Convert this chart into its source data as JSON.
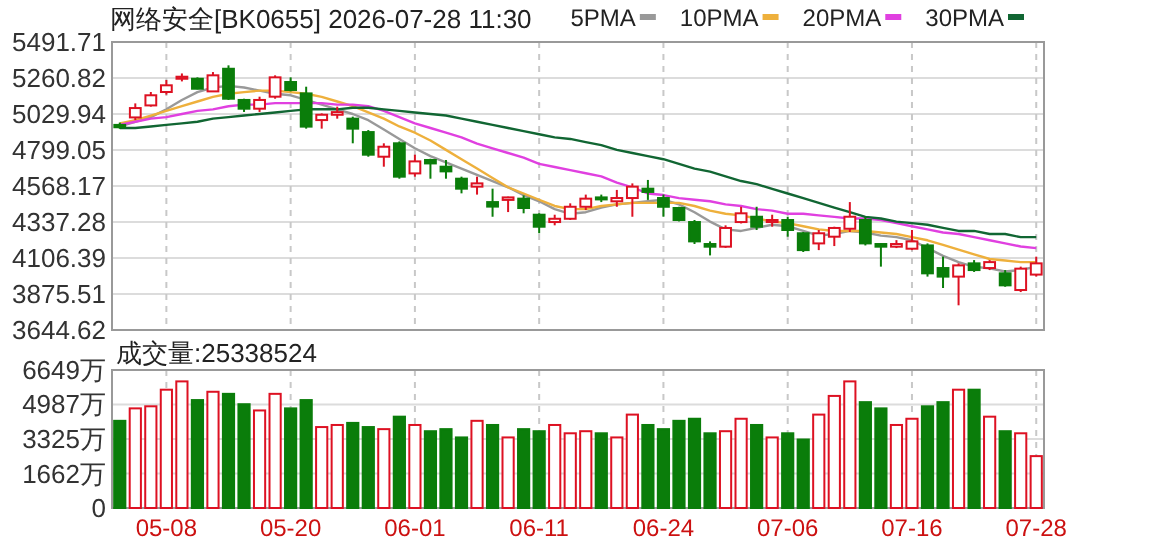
{
  "chart_data": [
    {
      "type": "candlestick",
      "title": "网络安全[BK0655] 2026-07-28 11:30",
      "categories": [
        null,
        null,
        null,
        null,
        null,
        null,
        null,
        null,
        null,
        null,
        null,
        null,
        null,
        null,
        null,
        null,
        null,
        null,
        null,
        null,
        null,
        null,
        null,
        null,
        null,
        null,
        null,
        null,
        null,
        null,
        null,
        null,
        null,
        null,
        null,
        null,
        null,
        null,
        null,
        null,
        null,
        null,
        null,
        null,
        null,
        null,
        null,
        null,
        null,
        null,
        null,
        null,
        null,
        null,
        null,
        null,
        null,
        null,
        null,
        null
      ],
      "ohlc": [
        [
          4960,
          4975,
          4935,
          4945
        ],
        [
          5008,
          5098,
          4991,
          5068
        ],
        [
          5085,
          5171,
          5077,
          5150
        ],
        [
          5171,
          5248,
          5154,
          5214
        ],
        [
          5256,
          5290,
          5239,
          5269
        ],
        [
          5256,
          5265,
          5188,
          5192
        ],
        [
          5175,
          5299,
          5171,
          5278
        ],
        [
          5320,
          5342,
          5120,
          5128
        ],
        [
          5120,
          5128,
          5043,
          5064
        ],
        [
          5064,
          5141,
          5043,
          5120
        ],
        [
          5141,
          5278,
          5128,
          5265
        ],
        [
          5235,
          5265,
          5175,
          5184
        ],
        [
          5162,
          5205,
          4936,
          4949
        ],
        [
          4991,
          5034,
          4936,
          5025
        ],
        [
          5025,
          5077,
          5000,
          5042
        ],
        [
          5000,
          5013,
          4842,
          4936
        ],
        [
          4914,
          4927,
          4756,
          4769
        ],
        [
          4756,
          4842,
          4692,
          4820
        ],
        [
          4842,
          4854,
          4615,
          4628
        ],
        [
          4649,
          4769,
          4628,
          4726
        ],
        [
          4735,
          4743,
          4615,
          4713
        ],
        [
          4692,
          4735,
          4615,
          4662
        ],
        [
          4615,
          4628,
          4521,
          4551
        ],
        [
          4564,
          4628,
          4513,
          4585
        ],
        [
          4465,
          4551,
          4371,
          4436
        ],
        [
          4479,
          4500,
          4401,
          4495
        ],
        [
          4487,
          4508,
          4393,
          4427
        ],
        [
          4384,
          4393,
          4265,
          4307
        ],
        [
          4337,
          4384,
          4316,
          4358
        ],
        [
          4358,
          4457,
          4350,
          4435
        ],
        [
          4435,
          4513,
          4414,
          4487
        ],
        [
          4495,
          4513,
          4465,
          4487
        ],
        [
          4470,
          4543,
          4435,
          4491
        ],
        [
          4491,
          4585,
          4371,
          4564
        ],
        [
          4551,
          4607,
          4479,
          4530
        ],
        [
          4491,
          4513,
          4371,
          4435
        ],
        [
          4427,
          4435,
          4341,
          4350
        ],
        [
          4337,
          4350,
          4196,
          4213
        ],
        [
          4196,
          4213,
          4123,
          4179
        ],
        [
          4179,
          4316,
          4171,
          4299
        ],
        [
          4337,
          4435,
          4328,
          4393
        ],
        [
          4371,
          4435,
          4286,
          4307
        ],
        [
          4337,
          4384,
          4307,
          4350
        ],
        [
          4350,
          4371,
          4243,
          4286
        ],
        [
          4265,
          4273,
          4145,
          4157
        ],
        [
          4200,
          4286,
          4157,
          4265
        ],
        [
          4243,
          4307,
          4183,
          4299
        ],
        [
          4294,
          4465,
          4273,
          4371
        ],
        [
          4350,
          4371,
          4187,
          4200
        ],
        [
          4196,
          4200,
          4051,
          4179
        ],
        [
          4179,
          4221,
          4170,
          4196
        ],
        [
          4166,
          4286,
          4157,
          4213
        ],
        [
          4187,
          4200,
          3987,
          4008
        ],
        [
          4042,
          4115,
          3914,
          3987
        ],
        [
          3987,
          4072,
          3803,
          4059
        ],
        [
          4072,
          4093,
          4017,
          4029
        ],
        [
          4042,
          4093,
          4029,
          4080
        ],
        [
          4008,
          4029,
          3922,
          3931
        ],
        [
          3901,
          4051,
          3888,
          4038
        ],
        [
          4000,
          4115,
          3987,
          4072
        ]
      ],
      "colors": [
        "#0a7d0a",
        "#dd1122",
        "#dd1122",
        "#dd1122",
        "#dd1122",
        "#0a7d0a",
        "#dd1122",
        "#0a7d0a",
        "#0a7d0a",
        "#dd1122",
        "#dd1122",
        "#0a7d0a",
        "#0a7d0a",
        "#dd1122",
        "#dd1122",
        "#0a7d0a",
        "#0a7d0a",
        "#dd1122",
        "#0a7d0a",
        "#dd1122",
        "#0a7d0a",
        "#0a7d0a",
        "#0a7d0a",
        "#dd1122",
        "#0a7d0a",
        "#dd1122",
        "#0a7d0a",
        "#0a7d0a",
        "#dd1122",
        "#dd1122",
        "#dd1122",
        "#0a7d0a",
        "#dd1122",
        "#dd1122",
        "#0a7d0a",
        "#0a7d0a",
        "#0a7d0a",
        "#0a7d0a",
        "#0a7d0a",
        "#dd1122",
        "#dd1122",
        "#0a7d0a",
        "#dd1122",
        "#0a7d0a",
        "#0a7d0a",
        "#dd1122",
        "#dd1122",
        "#dd1122",
        "#0a7d0a",
        "#0a7d0a",
        "#dd1122",
        "#dd1122",
        "#0a7d0a",
        "#0a7d0a",
        "#dd1122",
        "#0a7d0a",
        "#dd1122",
        "#0a7d0a",
        "#dd1122",
        "#dd1122"
      ],
      "series": [
        {
          "name": "5PMA",
          "type": "line",
          "color": "#999999",
          "values": [
            4950,
            4980,
            5010,
            5060,
            5120,
            5170,
            5200,
            5210,
            5200,
            5180,
            5160,
            5150,
            5120,
            5090,
            5060,
            5030,
            4990,
            4930,
            4870,
            4810,
            4760,
            4720,
            4680,
            4640,
            4600,
            4560,
            4510,
            4470,
            4420,
            4390,
            4400,
            4430,
            4450,
            4460,
            4470,
            4480,
            4450,
            4400,
            4340,
            4290,
            4280,
            4300,
            4320,
            4310,
            4280,
            4250,
            4260,
            4280,
            4270,
            4250,
            4240,
            4220,
            4170,
            4120,
            4080,
            4050,
            4040,
            4020,
            4030,
            4050
          ]
        },
        {
          "name": "10PMA",
          "type": "line",
          "color": "#eeb03c",
          "values": [
            4970,
            4990,
            5020,
            5050,
            5080,
            5110,
            5140,
            5160,
            5170,
            5180,
            5180,
            5170,
            5160,
            5140,
            5110,
            5080,
            5040,
            5000,
            4950,
            4910,
            4860,
            4800,
            4740,
            4680,
            4620,
            4560,
            4520,
            4480,
            4440,
            4420,
            4420,
            4440,
            4450,
            4460,
            4460,
            4460,
            4460,
            4440,
            4410,
            4390,
            4380,
            4360,
            4340,
            4330,
            4310,
            4290,
            4280,
            4280,
            4280,
            4270,
            4260,
            4240,
            4220,
            4190,
            4160,
            4130,
            4100,
            4090,
            4080,
            4080
          ]
        },
        {
          "name": "20PMA",
          "type": "line",
          "color": "#e040e0",
          "values": [
            4960,
            4980,
            5000,
            5010,
            5030,
            5050,
            5060,
            5080,
            5090,
            5090,
            5100,
            5100,
            5100,
            5100,
            5090,
            5090,
            5080,
            5050,
            5010,
            4970,
            4940,
            4910,
            4880,
            4840,
            4810,
            4780,
            4750,
            4710,
            4690,
            4670,
            4650,
            4630,
            4590,
            4560,
            4520,
            4510,
            4490,
            4480,
            4470,
            4450,
            4440,
            4420,
            4410,
            4390,
            4390,
            4380,
            4370,
            4360,
            4360,
            4350,
            4330,
            4310,
            4290,
            4270,
            4260,
            4240,
            4220,
            4200,
            4180,
            4170
          ]
        },
        {
          "name": "30PMA",
          "type": "line",
          "color": "#116633",
          "values": [
            4940,
            4940,
            4950,
            4960,
            4970,
            4980,
            5000,
            5010,
            5020,
            5030,
            5040,
            5050,
            5060,
            5060,
            5060,
            5070,
            5070,
            5060,
            5050,
            5040,
            5030,
            5020,
            5000,
            4980,
            4960,
            4940,
            4920,
            4900,
            4880,
            4870,
            4850,
            4830,
            4800,
            4780,
            4760,
            4740,
            4710,
            4680,
            4660,
            4630,
            4600,
            4580,
            4550,
            4520,
            4490,
            4460,
            4430,
            4400,
            4370,
            4360,
            4340,
            4330,
            4320,
            4300,
            4280,
            4280,
            4260,
            4260,
            4240,
            4240
          ]
        }
      ],
      "ylim": [
        3644.62,
        5491.71
      ],
      "yticks": [
        3644.62,
        3875.51,
        4106.39,
        4337.28,
        4568.17,
        4799.05,
        5029.94,
        5260.82,
        5491.71
      ],
      "grid": true,
      "legend": "top right",
      "tick_labels": "y"
    },
    {
      "type": "bar",
      "title": "成交量:25338524",
      "categories": [
        null,
        null,
        null,
        "05-08",
        null,
        null,
        null,
        null,
        null,
        null,
        null,
        "05-20",
        null,
        null,
        null,
        null,
        null,
        null,
        null,
        "06-01",
        null,
        null,
        null,
        null,
        null,
        null,
        null,
        "06-11",
        null,
        null,
        null,
        null,
        null,
        null,
        null,
        "06-24",
        null,
        null,
        null,
        null,
        null,
        null,
        null,
        "07-06",
        null,
        null,
        null,
        null,
        null,
        null,
        null,
        "07-16",
        null,
        null,
        null,
        null,
        null,
        null,
        null,
        "07-28"
      ],
      "values": [
        4200,
        4800,
        4900,
        5700,
        6100,
        5200,
        5600,
        5500,
        5000,
        4700,
        5500,
        4800,
        5200,
        3900,
        4000,
        4100,
        3900,
        3800,
        4400,
        4000,
        3700,
        3800,
        3400,
        4200,
        4000,
        3400,
        3800,
        3700,
        4000,
        3600,
        3700,
        3600,
        3400,
        4500,
        4000,
        3800,
        4200,
        4300,
        3600,
        3700,
        4300,
        4000,
        3400,
        3600,
        3300,
        4500,
        5400,
        6100,
        5100,
        4800,
        4000,
        4300,
        4900,
        5100,
        5700,
        5700,
        4400,
        3700,
        3600,
        2500
      ],
      "colors": [
        "#0a7d0a",
        "#dd1122",
        "#dd1122",
        "#dd1122",
        "#dd1122",
        "#0a7d0a",
        "#dd1122",
        "#0a7d0a",
        "#0a7d0a",
        "#dd1122",
        "#dd1122",
        "#0a7d0a",
        "#0a7d0a",
        "#dd1122",
        "#dd1122",
        "#0a7d0a",
        "#0a7d0a",
        "#dd1122",
        "#0a7d0a",
        "#dd1122",
        "#0a7d0a",
        "#0a7d0a",
        "#0a7d0a",
        "#dd1122",
        "#0a7d0a",
        "#dd1122",
        "#0a7d0a",
        "#0a7d0a",
        "#dd1122",
        "#dd1122",
        "#dd1122",
        "#0a7d0a",
        "#dd1122",
        "#dd1122",
        "#0a7d0a",
        "#0a7d0a",
        "#0a7d0a",
        "#0a7d0a",
        "#0a7d0a",
        "#dd1122",
        "#dd1122",
        "#0a7d0a",
        "#dd1122",
        "#0a7d0a",
        "#0a7d0a",
        "#dd1122",
        "#dd1122",
        "#dd1122",
        "#0a7d0a",
        "#0a7d0a",
        "#dd1122",
        "#dd1122",
        "#0a7d0a",
        "#0a7d0a",
        "#dd1122",
        "#0a7d0a",
        "#dd1122",
        "#0a7d0a",
        "#dd1122",
        "#dd1122"
      ],
      "ylim": [
        0,
        6649
      ],
      "yticks": [
        0,
        {
          "value": 1662,
          "label": "1662万"
        },
        {
          "value": 3325,
          "label": "3325万"
        },
        {
          "value": 4987,
          "label": "4987万"
        },
        {
          "value": 6649,
          "label": "6649万"
        }
      ],
      "grid": true
    }
  ]
}
